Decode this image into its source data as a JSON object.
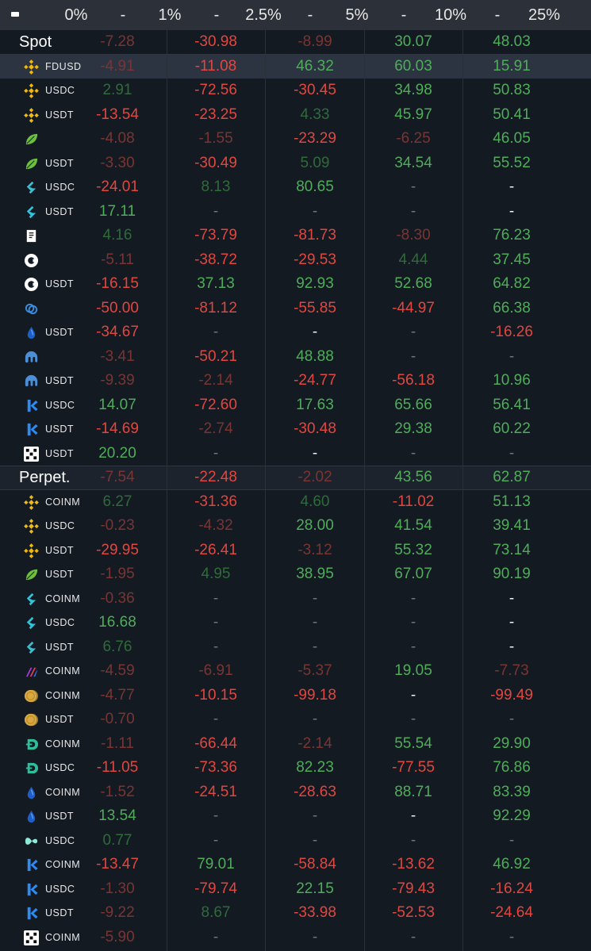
{
  "header": {
    "collapse_icon": "minus-icon",
    "cells": [
      "0%",
      "-",
      "1%",
      "-",
      "2.5%",
      "-",
      "5%",
      "-",
      "10%",
      "-",
      "25%"
    ]
  },
  "colors": {
    "background": "#131a22",
    "header": "#2c3038",
    "negative": "#e2473f",
    "negative_dim": "#7a3532",
    "positive": "#4fad5a",
    "positive_dim": "#2f6b3a",
    "highlight_row": "#2c3442"
  },
  "rows": [
    {
      "type": "section",
      "label": "Spot",
      "values": [
        [
          "-7.28",
          "negdim"
        ],
        [
          "-30.98",
          "neg"
        ],
        [
          "-8.99",
          "negdim"
        ],
        [
          "30.07",
          "pos"
        ],
        [
          "48.03",
          "pos"
        ]
      ]
    },
    {
      "type": "item",
      "highlight": true,
      "icon": "binance-icon",
      "pair": "FDUSD",
      "values": [
        [
          "-4.91",
          "negdim"
        ],
        [
          "-11.08",
          "neg"
        ],
        [
          "46.32",
          "pos"
        ],
        [
          "60.03",
          "pos"
        ],
        [
          "15.91",
          "pos"
        ]
      ]
    },
    {
      "type": "item",
      "icon": "binance-icon",
      "pair": "USDC",
      "values": [
        [
          "2.91",
          "posdim"
        ],
        [
          "-72.56",
          "neg"
        ],
        [
          "-30.45",
          "neg"
        ],
        [
          "34.98",
          "pos"
        ],
        [
          "50.83",
          "pos"
        ]
      ]
    },
    {
      "type": "item",
      "icon": "binance-icon",
      "pair": "USDT",
      "values": [
        [
          "-13.54",
          "neg"
        ],
        [
          "-23.25",
          "neg"
        ],
        [
          "4.33",
          "posdim"
        ],
        [
          "45.97",
          "pos"
        ],
        [
          "50.41",
          "pos"
        ]
      ]
    },
    {
      "type": "item",
      "icon": "leaf-icon",
      "pair": "",
      "values": [
        [
          "-4.08",
          "negdim"
        ],
        [
          "-1.55",
          "negdim"
        ],
        [
          "-23.29",
          "neg"
        ],
        [
          "-6.25",
          "negdim"
        ],
        [
          "46.05",
          "pos"
        ]
      ]
    },
    {
      "type": "item",
      "icon": "leaf-icon",
      "pair": "USDT",
      "values": [
        [
          "-3.30",
          "negdim"
        ],
        [
          "-30.49",
          "neg"
        ],
        [
          "5.09",
          "posdim"
        ],
        [
          "34.54",
          "pos"
        ],
        [
          "55.52",
          "pos"
        ]
      ]
    },
    {
      "type": "item",
      "icon": "bitget-icon",
      "pair": "USDC",
      "values": [
        [
          "-24.01",
          "neg"
        ],
        [
          "8.13",
          "posdim"
        ],
        [
          "80.65",
          "pos"
        ],
        [
          "-",
          "dash"
        ],
        [
          "-",
          "dashb"
        ]
      ]
    },
    {
      "type": "item",
      "icon": "bitget-icon",
      "pair": "USDT",
      "values": [
        [
          "17.11",
          "pos"
        ],
        [
          "-",
          "dash"
        ],
        [
          "-",
          "dash"
        ],
        [
          "-",
          "dash"
        ],
        [
          "-",
          "dashb"
        ]
      ]
    },
    {
      "type": "item",
      "icon": "bitmart-icon",
      "pair": "",
      "values": [
        [
          "4.16",
          "posdim"
        ],
        [
          "-73.79",
          "neg"
        ],
        [
          "-81.73",
          "neg"
        ],
        [
          "-8.30",
          "negdim"
        ],
        [
          "76.23",
          "pos"
        ]
      ]
    },
    {
      "type": "item",
      "icon": "coinbase-icon",
      "pair": "",
      "values": [
        [
          "-5.11",
          "negdim"
        ],
        [
          "-38.72",
          "neg"
        ],
        [
          "-29.53",
          "neg"
        ],
        [
          "4.44",
          "posdim"
        ],
        [
          "37.45",
          "pos"
        ]
      ]
    },
    {
      "type": "item",
      "icon": "coinbase-icon",
      "pair": "USDT",
      "values": [
        [
          "-16.15",
          "neg"
        ],
        [
          "37.13",
          "pos"
        ],
        [
          "92.93",
          "pos"
        ],
        [
          "52.68",
          "pos"
        ],
        [
          "64.82",
          "pos"
        ]
      ]
    },
    {
      "type": "item",
      "icon": "crypto-com-icon",
      "pair": "",
      "values": [
        [
          "-50.00",
          "neg"
        ],
        [
          "-81.12",
          "neg"
        ],
        [
          "-55.85",
          "neg"
        ],
        [
          "-44.97",
          "neg"
        ],
        [
          "66.38",
          "pos"
        ]
      ]
    },
    {
      "type": "item",
      "icon": "drop-icon",
      "pair": "USDT",
      "values": [
        [
          "-34.67",
          "neg"
        ],
        [
          "-",
          "dash"
        ],
        [
          "-",
          "dashb"
        ],
        [
          "-",
          "dash"
        ],
        [
          "-16.26",
          "neg"
        ]
      ]
    },
    {
      "type": "item",
      "icon": "kraken-icon",
      "pair": "",
      "values": [
        [
          "-3.41",
          "negdim"
        ],
        [
          "-50.21",
          "neg"
        ],
        [
          "48.88",
          "pos"
        ],
        [
          "-",
          "dash"
        ],
        [
          "-",
          "dash"
        ]
      ]
    },
    {
      "type": "item",
      "icon": "kraken-icon",
      "pair": "USDT",
      "values": [
        [
          "-9.39",
          "negdim"
        ],
        [
          "-2.14",
          "negdim"
        ],
        [
          "-24.77",
          "neg"
        ],
        [
          "-56.18",
          "neg"
        ],
        [
          "10.96",
          "pos"
        ]
      ]
    },
    {
      "type": "item",
      "icon": "kucoin-icon",
      "pair": "USDC",
      "values": [
        [
          "14.07",
          "pos"
        ],
        [
          "-72.60",
          "neg"
        ],
        [
          "17.63",
          "pos"
        ],
        [
          "65.66",
          "pos"
        ],
        [
          "56.41",
          "pos"
        ]
      ]
    },
    {
      "type": "item",
      "icon": "kucoin-icon",
      "pair": "USDT",
      "values": [
        [
          "-14.69",
          "neg"
        ],
        [
          "-2.74",
          "negdim"
        ],
        [
          "-30.48",
          "neg"
        ],
        [
          "29.38",
          "pos"
        ],
        [
          "60.22",
          "pos"
        ]
      ]
    },
    {
      "type": "item",
      "icon": "okx-icon",
      "pair": "USDT",
      "values": [
        [
          "20.20",
          "pos"
        ],
        [
          "-",
          "dash"
        ],
        [
          "-",
          "dashb"
        ],
        [
          "-",
          "dash"
        ],
        [
          "-",
          "dash"
        ]
      ]
    },
    {
      "type": "section",
      "label": "Perpet.",
      "values": [
        [
          "-7.54",
          "negdim"
        ],
        [
          "-22.48",
          "neg"
        ],
        [
          "-2.02",
          "negdim"
        ],
        [
          "43.56",
          "pos"
        ],
        [
          "62.87",
          "pos"
        ]
      ]
    },
    {
      "type": "item",
      "icon": "binance-icon",
      "pair": "COINM",
      "values": [
        [
          "6.27",
          "posdim"
        ],
        [
          "-31.36",
          "neg"
        ],
        [
          "4.60",
          "posdim"
        ],
        [
          "-11.02",
          "neg"
        ],
        [
          "51.13",
          "pos"
        ]
      ]
    },
    {
      "type": "item",
      "icon": "binance-icon",
      "pair": "USDC",
      "values": [
        [
          "-0.23",
          "negdim"
        ],
        [
          "-4.32",
          "negdim"
        ],
        [
          "28.00",
          "pos"
        ],
        [
          "41.54",
          "pos"
        ],
        [
          "39.41",
          "pos"
        ]
      ]
    },
    {
      "type": "item",
      "icon": "binance-icon",
      "pair": "USDT",
      "values": [
        [
          "-29.95",
          "neg"
        ],
        [
          "-26.41",
          "neg"
        ],
        [
          "-3.12",
          "negdim"
        ],
        [
          "55.32",
          "pos"
        ],
        [
          "73.14",
          "pos"
        ]
      ]
    },
    {
      "type": "item",
      "icon": "leaf-icon",
      "pair": "USDT",
      "values": [
        [
          "-1.95",
          "negdim"
        ],
        [
          "4.95",
          "posdim"
        ],
        [
          "38.95",
          "pos"
        ],
        [
          "67.07",
          "pos"
        ],
        [
          "90.19",
          "pos"
        ]
      ]
    },
    {
      "type": "item",
      "icon": "bitget-icon",
      "pair": "COINM",
      "values": [
        [
          "-0.36",
          "negdim"
        ],
        [
          "-",
          "dash"
        ],
        [
          "-",
          "dash"
        ],
        [
          "-",
          "dash"
        ],
        [
          "-",
          "dashb"
        ]
      ]
    },
    {
      "type": "item",
      "icon": "bitget-icon",
      "pair": "USDC",
      "values": [
        [
          "16.68",
          "pos"
        ],
        [
          "-",
          "dash"
        ],
        [
          "-",
          "dash"
        ],
        [
          "-",
          "dash"
        ],
        [
          "-",
          "dashb"
        ]
      ]
    },
    {
      "type": "item",
      "icon": "bitget-icon",
      "pair": "USDT",
      "values": [
        [
          "6.76",
          "posdim"
        ],
        [
          "-",
          "dash"
        ],
        [
          "-",
          "dash"
        ],
        [
          "-",
          "dash"
        ],
        [
          "-",
          "dashb"
        ]
      ]
    },
    {
      "type": "item",
      "icon": "bybit-icon",
      "pair": "COINM",
      "values": [
        [
          "-4.59",
          "negdim"
        ],
        [
          "-6.91",
          "negdim"
        ],
        [
          "-5.37",
          "negdim"
        ],
        [
          "19.05",
          "pos"
        ],
        [
          "-7.73",
          "negdim"
        ]
      ]
    },
    {
      "type": "item",
      "icon": "coin-stack-icon",
      "pair": "COINM",
      "values": [
        [
          "-4.77",
          "negdim"
        ],
        [
          "-10.15",
          "neg"
        ],
        [
          "-99.18",
          "neg"
        ],
        [
          "-",
          "dashb"
        ],
        [
          "-99.49",
          "neg"
        ]
      ]
    },
    {
      "type": "item",
      "icon": "coin-stack-icon",
      "pair": "USDT",
      "values": [
        [
          "-0.70",
          "negdim"
        ],
        [
          "-",
          "dash"
        ],
        [
          "-",
          "dash"
        ],
        [
          "-",
          "dash"
        ],
        [
          "-",
          "dash"
        ]
      ]
    },
    {
      "type": "item",
      "icon": "deribit-icon",
      "pair": "COINM",
      "values": [
        [
          "-1.11",
          "negdim"
        ],
        [
          "-66.44",
          "neg"
        ],
        [
          "-2.14",
          "negdim"
        ],
        [
          "55.54",
          "pos"
        ],
        [
          "29.90",
          "pos"
        ]
      ]
    },
    {
      "type": "item",
      "icon": "deribit-icon",
      "pair": "USDC",
      "values": [
        [
          "-11.05",
          "neg"
        ],
        [
          "-73.36",
          "neg"
        ],
        [
          "82.23",
          "pos"
        ],
        [
          "-77.55",
          "neg"
        ],
        [
          "76.86",
          "pos"
        ]
      ]
    },
    {
      "type": "item",
      "icon": "drop-icon",
      "pair": "COINM",
      "values": [
        [
          "-1.52",
          "negdim"
        ],
        [
          "-24.51",
          "neg"
        ],
        [
          "-28.63",
          "neg"
        ],
        [
          "88.71",
          "pos"
        ],
        [
          "83.39",
          "pos"
        ]
      ]
    },
    {
      "type": "item",
      "icon": "drop-icon",
      "pair": "USDT",
      "values": [
        [
          "13.54",
          "pos"
        ],
        [
          "-",
          "dash"
        ],
        [
          "-",
          "dash"
        ],
        [
          "-",
          "dashb"
        ],
        [
          "92.29",
          "pos"
        ]
      ]
    },
    {
      "type": "item",
      "icon": "hyperliquid-icon",
      "pair": "USDC",
      "values": [
        [
          "0.77",
          "posdim"
        ],
        [
          "-",
          "dash"
        ],
        [
          "-",
          "dash"
        ],
        [
          "-",
          "dash"
        ],
        [
          "-",
          "dash"
        ]
      ]
    },
    {
      "type": "item",
      "icon": "kucoin-icon",
      "pair": "COINM",
      "values": [
        [
          "-13.47",
          "neg"
        ],
        [
          "79.01",
          "pos"
        ],
        [
          "-58.84",
          "neg"
        ],
        [
          "-13.62",
          "neg"
        ],
        [
          "46.92",
          "pos"
        ]
      ]
    },
    {
      "type": "item",
      "icon": "kucoin-icon",
      "pair": "USDC",
      "values": [
        [
          "-1.30",
          "negdim"
        ],
        [
          "-79.74",
          "neg"
        ],
        [
          "22.15",
          "pos"
        ],
        [
          "-79.43",
          "neg"
        ],
        [
          "-16.24",
          "neg"
        ]
      ]
    },
    {
      "type": "item",
      "icon": "kucoin-icon",
      "pair": "USDT",
      "values": [
        [
          "-9.22",
          "negdim"
        ],
        [
          "8.67",
          "posdim"
        ],
        [
          "-33.98",
          "neg"
        ],
        [
          "-52.53",
          "neg"
        ],
        [
          "-24.64",
          "neg"
        ]
      ]
    },
    {
      "type": "item",
      "icon": "okx-icon",
      "pair": "COINM",
      "values": [
        [
          "-5.90",
          "negdim"
        ],
        [
          "-",
          "dash"
        ],
        [
          "-",
          "dash"
        ],
        [
          "-",
          "dash"
        ],
        [
          "-",
          "dash"
        ]
      ]
    }
  ]
}
